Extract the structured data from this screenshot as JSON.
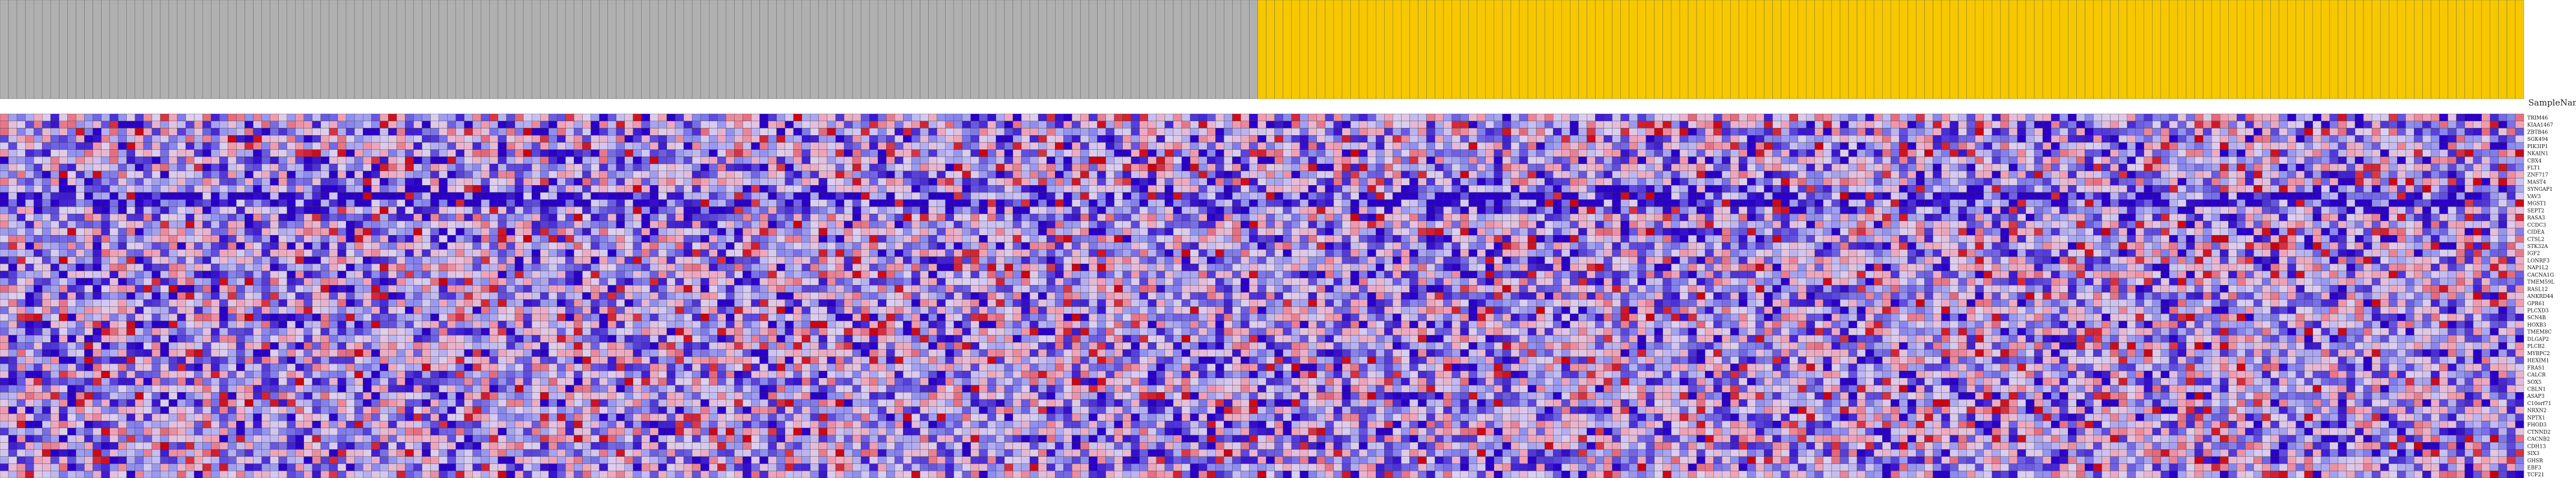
{
  "header": {
    "sample_name_label": "SampleName",
    "group_colors": {
      "group_1": "#b0b0b0",
      "group_2": "#f7c800"
    }
  },
  "chart_data": {
    "type": "heatmap",
    "title": "",
    "color_scale": {
      "low": "#2a00c8",
      "mid_low": "#8f8fef",
      "mid": "#dcd0f0",
      "mid_high": "#f0a0b4",
      "high": "#c80010"
    },
    "grid": true,
    "legend": "none",
    "groups": [
      {
        "color": "#b0b0b0",
        "n_samples": 149
      },
      {
        "color": "#f7c800",
        "n_samples": 150
      }
    ],
    "row_labels": [
      "TRIM46",
      "KIAA1467",
      "ZBTB46",
      "SGK494",
      "PIK3IP1",
      "NKAIN1",
      "CBX4",
      "FLT1",
      "ZNF717",
      "MAST4",
      "SYNGAP1",
      "VAV3",
      "MGST1",
      "SEPT2",
      "RASA3",
      "CCDC3",
      "CIDEA",
      "CTSL2",
      "STK32A",
      "IGF2",
      "LONRF3",
      "NAP1L2",
      "CACNA1G",
      "TMEM59L",
      "RASL12",
      "ANKRD44",
      "GPR61",
      "PLCXD3",
      "SCN4B",
      "HOXB3",
      "TMEM8C",
      "DLGAP2",
      "PLCB2",
      "MYBPC2",
      "HEXIM1",
      "FRAS1",
      "CALCR",
      "SOX5",
      "CBLN1",
      "ASAP3",
      "C10orf71",
      "NRXN2",
      "NPTX1",
      "FHOD3",
      "CTNND2",
      "CACNB2",
      "CDH13",
      "SIX3",
      "GHSR",
      "EBF3",
      "TCF21"
    ],
    "n_columns": 299,
    "value_range": [
      -1,
      1
    ],
    "values_note": "encoded per cell by color"
  }
}
